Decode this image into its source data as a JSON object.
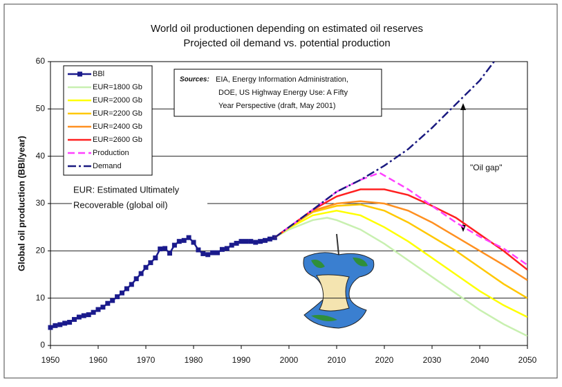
{
  "chart_data": {
    "type": "line",
    "title": "World oil productionen depending on estimated oil reserves",
    "subtitle": "Projected oil demand vs. potential production",
    "y_label": "Global oil production (BBl/year)",
    "xlim": [
      1950,
      2050
    ],
    "xticks": [
      1950,
      1960,
      1970,
      1980,
      1990,
      2000,
      2010,
      2020,
      2030,
      2040,
      2050
    ],
    "ylim": [
      0,
      60
    ],
    "yticks": [
      0,
      10,
      20,
      30,
      40,
      50,
      60
    ],
    "grid": true,
    "legend": "upper left",
    "annotations": {
      "sources_label": "Sources:",
      "sources": [
        "EIA, Energy Information Administration,",
        "DOE, US Highway Energy Use:  A Fifty",
        "Year Perspective (draft, May 2001)"
      ],
      "eur_note": [
        "EUR: Estimated Ultimately",
        "Recoverable (global oil)"
      ],
      "gap": "\"Oil gap\""
    },
    "series": [
      {
        "name": "BBl",
        "color": "#1a1a8c",
        "style": "markers",
        "x": [
          1950,
          1951,
          1952,
          1953,
          1954,
          1955,
          1956,
          1957,
          1958,
          1959,
          1960,
          1961,
          1962,
          1963,
          1964,
          1965,
          1966,
          1967,
          1968,
          1969,
          1970,
          1971,
          1972,
          1973,
          1974,
          1975,
          1976,
          1977,
          1978,
          1979,
          1980,
          1981,
          1982,
          1983,
          1984,
          1985,
          1986,
          1987,
          1988,
          1989,
          1990,
          1991,
          1992,
          1993,
          1994,
          1995,
          1996,
          1997
        ],
        "values": [
          3.8,
          4.2,
          4.4,
          4.7,
          4.9,
          5.5,
          6.0,
          6.3,
          6.5,
          7.0,
          7.6,
          8.1,
          8.9,
          9.5,
          10.3,
          11.1,
          12.0,
          12.9,
          14.1,
          15.2,
          16.5,
          17.5,
          18.5,
          20.4,
          20.5,
          19.5,
          21.2,
          22.0,
          22.2,
          22.8,
          21.8,
          20.2,
          19.4,
          19.2,
          19.6,
          19.6,
          20.3,
          20.5,
          21.2,
          21.6,
          22.0,
          22.0,
          22.0,
          21.8,
          22.0,
          22.2,
          22.5,
          22.8
        ]
      },
      {
        "name": "EUR=1800 Gb",
        "color": "#c8f0b0",
        "style": "solid",
        "x": [
          1997,
          2000,
          2005,
          2008,
          2010,
          2015,
          2020,
          2025,
          2030,
          2035,
          2040,
          2045,
          2050
        ],
        "values": [
          22.8,
          24.5,
          26.5,
          27,
          26.5,
          24.5,
          21.5,
          18,
          14.5,
          11,
          7.5,
          4.5,
          2
        ]
      },
      {
        "name": "EUR=2000 Gb",
        "color": "#ffff00",
        "style": "solid",
        "x": [
          1997,
          2000,
          2005,
          2010,
          2015,
          2020,
          2025,
          2030,
          2035,
          2040,
          2045,
          2050
        ],
        "values": [
          22.8,
          24.8,
          27.5,
          28.5,
          27.5,
          25,
          22,
          18.5,
          15,
          11.5,
          8.5,
          6
        ]
      },
      {
        "name": "EUR=2200 Gb",
        "color": "#ffc800",
        "style": "solid",
        "x": [
          1997,
          2000,
          2005,
          2010,
          2015,
          2020,
          2025,
          2030,
          2035,
          2040,
          2045,
          2050
        ],
        "values": [
          22.8,
          25,
          28.2,
          29.5,
          29.8,
          28.5,
          26,
          23,
          20,
          16.5,
          13,
          10
        ]
      },
      {
        "name": "EUR=2400 Gb",
        "color": "#ff9020",
        "style": "solid",
        "x": [
          1997,
          2000,
          2005,
          2010,
          2015,
          2020,
          2025,
          2030,
          2035,
          2040,
          2045,
          2050
        ],
        "values": [
          22.8,
          25,
          28.5,
          30,
          30.5,
          30,
          28.5,
          26,
          23,
          20,
          17,
          13.8
        ]
      },
      {
        "name": "EUR=2600 Gb",
        "color": "#ff2020",
        "style": "solid",
        "x": [
          1997,
          2000,
          2005,
          2010,
          2015,
          2020,
          2025,
          2030,
          2035,
          2040,
          2045,
          2050
        ],
        "values": [
          22.8,
          25,
          28.7,
          31.5,
          33,
          33,
          31.8,
          29.5,
          27,
          23.5,
          20,
          16
        ]
      },
      {
        "name": "Production",
        "color": "#ff40ff",
        "style": "dashed",
        "x": [
          1997,
          2000,
          2005,
          2010,
          2015,
          2019,
          2025,
          2030,
          2035,
          2040,
          2045,
          2050
        ],
        "values": [
          22.8,
          25,
          28.7,
          32.5,
          35,
          36.5,
          33,
          29.5,
          26,
          23,
          20.5,
          17
        ]
      },
      {
        "name": "Demand",
        "color": "#1a1a80",
        "style": "dashdot",
        "x": [
          1997,
          2000,
          2005,
          2010,
          2015,
          2020,
          2025,
          2030,
          2035,
          2040,
          2043
        ],
        "values": [
          22.8,
          25,
          28.7,
          32.5,
          35,
          38,
          41.5,
          46,
          51,
          56,
          60
        ]
      }
    ]
  }
}
